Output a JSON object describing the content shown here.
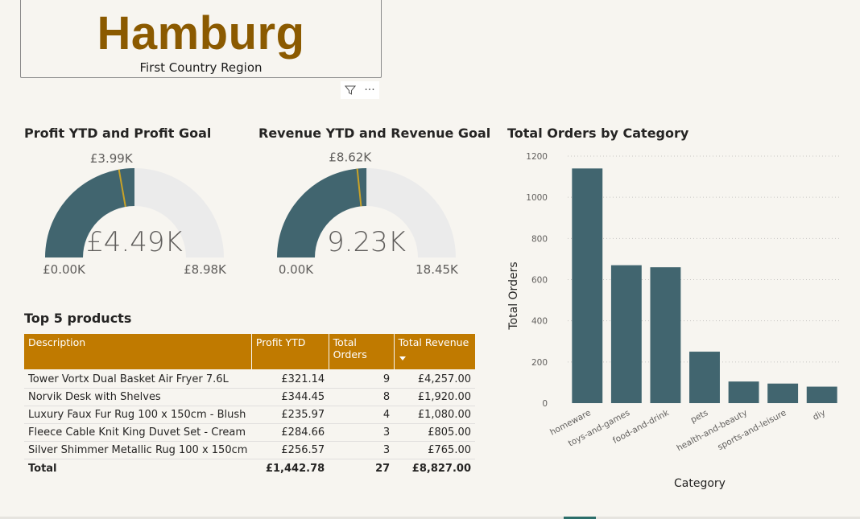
{
  "header": {
    "title": "Hamburg",
    "subtitle": "First Country Region"
  },
  "visual_tools": [
    {
      "icon": "filter-icon"
    },
    {
      "icon": "more-options-icon",
      "label": "···"
    }
  ],
  "profit_gauge": {
    "title": "Profit YTD and Profit Goal",
    "value": 4.49,
    "value_label": "£4.49K",
    "goal": 3.99,
    "goal_label": "£3.99K",
    "min": 0,
    "min_label": "£0.00K",
    "max": 8.98,
    "max_label": "£8.98K"
  },
  "revenue_gauge": {
    "title": "Revenue YTD and Revenue Goal",
    "value": 9.23,
    "value_label": "9.23K",
    "goal": 8.62,
    "goal_label": "£8.62K",
    "min": 0,
    "min_label": "0.00K",
    "max": 18.45,
    "max_label": "18.45K"
  },
  "top_products": {
    "title": "Top 5 products",
    "columns": [
      "Description",
      "Profit YTD",
      "Total Orders",
      "Total Revenue"
    ],
    "rows": [
      [
        "Tower Vortx Dual Basket Air Fryer 7.6L",
        "£321.14",
        "9",
        "£4,257.00"
      ],
      [
        "Norvik Desk with Shelves",
        "£344.45",
        "8",
        "£1,920.00"
      ],
      [
        "Luxury Faux Fur Rug 100 x 150cm - Blush",
        "£235.97",
        "4",
        "£1,080.00"
      ],
      [
        "Fleece Cable Knit King Duvet Set - Cream",
        "£284.66",
        "3",
        "£805.00"
      ],
      [
        "Silver Shimmer Metallic Rug 100 x 150cm",
        "£256.57",
        "3",
        "£765.00"
      ]
    ],
    "total": [
      "Total",
      "£1,442.78",
      "27",
      "£8,827.00"
    ]
  },
  "chart_data": {
    "type": "bar",
    "title": "Total Orders by Category",
    "xlabel": "Category",
    "ylabel": "Total Orders",
    "categories": [
      "homeware",
      "toys-and-games",
      "food-and-drink",
      "pets",
      "health-and-beauty",
      "sports-and-leisure",
      "diy"
    ],
    "values": [
      1140,
      670,
      660,
      250,
      105,
      95,
      80
    ],
    "yticks": [
      0,
      200,
      400,
      600,
      800,
      1000,
      1200
    ],
    "ylim": [
      0,
      1200
    ],
    "grid": true,
    "bar_color": "#41656f"
  },
  "colors": {
    "accent": "#c07a00",
    "title": "#8b5a00",
    "gauge_fill": "#41656f",
    "gauge_track": "#ebebeb",
    "goal_marker": "#c9a227",
    "background": "#f7f5f0"
  }
}
